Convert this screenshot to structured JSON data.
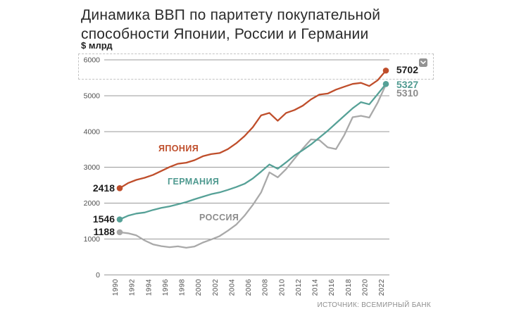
{
  "header": {
    "title": "Динамика ВВП по паритету покупательной способности Японии, России и Германии",
    "unit": "$ млрд"
  },
  "controls": {
    "collapse_button_icon": "chevron-down-icon"
  },
  "source_note": "ИСТОЧНИК: ВСЕМИРНЫЙ БАНК",
  "colors": {
    "japan": "#bf4e2b",
    "germany": "#56a197",
    "russia": "#a9a9a9",
    "text_dark": "#1d1d1d",
    "grid": "#9a9a9a"
  },
  "chart_data": {
    "type": "line",
    "title": "Динамика ВВП по паритету покупательной способности Японии, России и Германии",
    "ylabel": "$ млрд",
    "ylim": [
      0,
      6000
    ],
    "y_ticks": [
      0,
      1000,
      2000,
      3000,
      4000,
      5000,
      6000
    ],
    "x_tick_labels": [
      "1990",
      "1992",
      "1994",
      "1996",
      "1998",
      "2000",
      "2002",
      "2004",
      "2006",
      "2008",
      "2010",
      "2012",
      "2014",
      "2016",
      "2018",
      "2020",
      "2022"
    ],
    "x": [
      1990,
      1991,
      1992,
      1993,
      1994,
      1995,
      1996,
      1997,
      1998,
      1999,
      2000,
      2001,
      2002,
      2003,
      2004,
      2005,
      2006,
      2007,
      2008,
      2009,
      2010,
      2011,
      2012,
      2013,
      2014,
      2015,
      2016,
      2017,
      2018,
      2019,
      2020,
      2021,
      2022
    ],
    "grid": "horizontal",
    "legend_position": "inline-on-lines",
    "source": "ИСТОЧНИК: ВСЕМИРНЫЙ БАНК",
    "series": [
      {
        "name": "ЯПОНИЯ",
        "color": "#bf4e2b",
        "start_label": "2418",
        "end_label": "5702",
        "end_dot": true,
        "values": [
          2418,
          2560,
          2650,
          2710,
          2790,
          2900,
          3010,
          3100,
          3130,
          3200,
          3310,
          3370,
          3400,
          3510,
          3670,
          3870,
          4120,
          4450,
          4520,
          4300,
          4520,
          4600,
          4720,
          4900,
          5030,
          5060,
          5170,
          5250,
          5330,
          5360,
          5270,
          5430,
          5702
        ]
      },
      {
        "name": "ГЕРМАНИЯ",
        "color": "#56a197",
        "start_label": "1546",
        "end_label": "5327",
        "end_dot": true,
        "values": [
          1546,
          1650,
          1710,
          1740,
          1810,
          1870,
          1910,
          1970,
          2030,
          2110,
          2180,
          2250,
          2300,
          2370,
          2450,
          2540,
          2690,
          2880,
          3080,
          2960,
          3140,
          3330,
          3480,
          3640,
          3830,
          4020,
          4230,
          4440,
          4650,
          4820,
          4760,
          5040,
          5327
        ]
      },
      {
        "name": "РОССИЯ",
        "color": "#a9a9a9",
        "start_label": "1188",
        "end_label": "5310",
        "end_dot": false,
        "values": [
          1188,
          1160,
          1100,
          960,
          850,
          800,
          770,
          795,
          755,
          790,
          900,
          985,
          1080,
          1230,
          1400,
          1650,
          1950,
          2300,
          2860,
          2720,
          2950,
          3240,
          3520,
          3780,
          3760,
          3560,
          3510,
          3900,
          4400,
          4440,
          4390,
          4800,
          5310
        ]
      }
    ]
  }
}
